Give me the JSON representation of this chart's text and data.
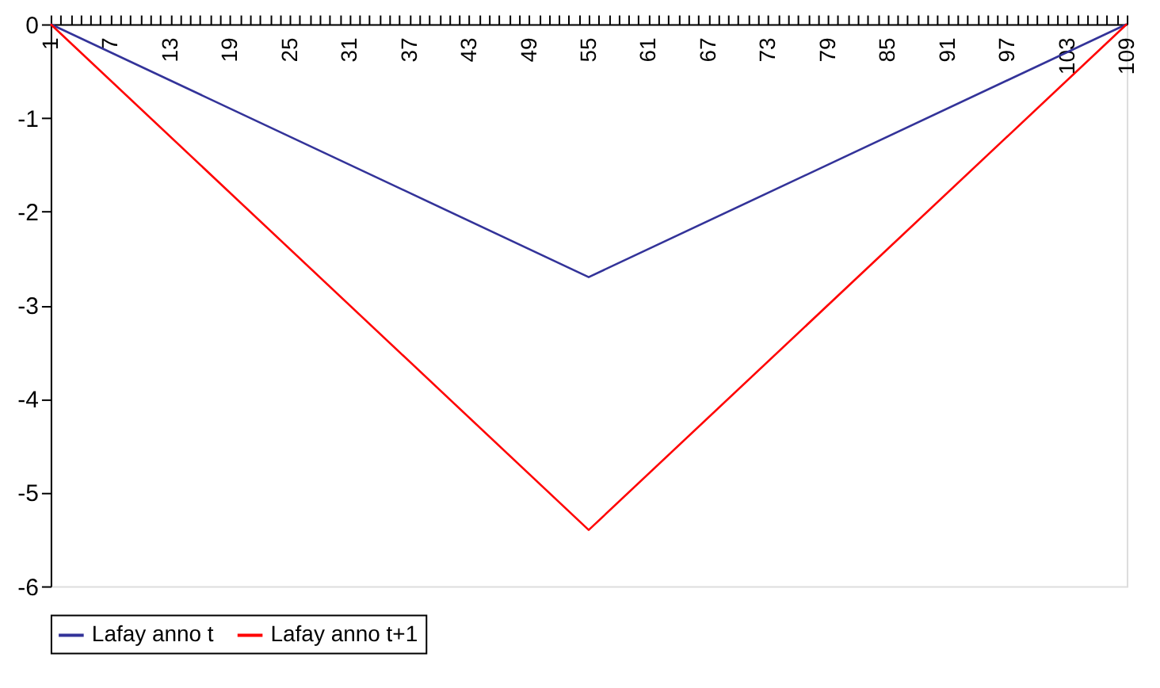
{
  "chart_data": {
    "type": "line",
    "x": [
      1,
      55,
      109
    ],
    "series": [
      {
        "name": "Lafay anno t",
        "color": "#333399",
        "values": [
          0,
          -2.7,
          0
        ]
      },
      {
        "name": "Lafay anno t+1",
        "color": "#ff0000",
        "values": [
          0,
          -5.4,
          0
        ]
      }
    ],
    "xlim": [
      1,
      109
    ],
    "xticks": [
      1,
      {
        "value": 2,
        "label": null
      },
      {
        "value": 3,
        "label": null
      },
      {
        "value": 4,
        "label": null
      },
      {
        "value": 5,
        "label": null
      },
      {
        "value": 6,
        "label": null
      },
      7,
      {
        "value": 8,
        "label": null
      },
      {
        "value": 9,
        "label": null
      },
      {
        "value": 10,
        "label": null
      },
      {
        "value": 11,
        "label": null
      },
      {
        "value": 12,
        "label": null
      },
      13,
      {
        "value": 14,
        "label": null
      },
      {
        "value": 15,
        "label": null
      },
      {
        "value": 16,
        "label": null
      },
      {
        "value": 17,
        "label": null
      },
      {
        "value": 18,
        "label": null
      },
      19,
      {
        "value": 20,
        "label": null
      },
      {
        "value": 21,
        "label": null
      },
      {
        "value": 22,
        "label": null
      },
      {
        "value": 23,
        "label": null
      },
      {
        "value": 24,
        "label": null
      },
      25,
      {
        "value": 26,
        "label": null
      },
      {
        "value": 27,
        "label": null
      },
      {
        "value": 28,
        "label": null
      },
      {
        "value": 29,
        "label": null
      },
      {
        "value": 30,
        "label": null
      },
      31,
      {
        "value": 32,
        "label": null
      },
      {
        "value": 33,
        "label": null
      },
      {
        "value": 34,
        "label": null
      },
      {
        "value": 35,
        "label": null
      },
      {
        "value": 36,
        "label": null
      },
      37,
      {
        "value": 38,
        "label": null
      },
      {
        "value": 39,
        "label": null
      },
      {
        "value": 40,
        "label": null
      },
      {
        "value": 41,
        "label": null
      },
      {
        "value": 42,
        "label": null
      },
      43,
      {
        "value": 44,
        "label": null
      },
      {
        "value": 45,
        "label": null
      },
      {
        "value": 46,
        "label": null
      },
      {
        "value": 47,
        "label": null
      },
      {
        "value": 48,
        "label": null
      },
      49,
      {
        "value": 50,
        "label": null
      },
      {
        "value": 51,
        "label": null
      },
      {
        "value": 52,
        "label": null
      },
      {
        "value": 53,
        "label": null
      },
      {
        "value": 54,
        "label": null
      },
      55,
      {
        "value": 56,
        "label": null
      },
      {
        "value": 57,
        "label": null
      },
      {
        "value": 58,
        "label": null
      },
      {
        "value": 59,
        "label": null
      },
      {
        "value": 60,
        "label": null
      },
      61,
      {
        "value": 62,
        "label": null
      },
      {
        "value": 63,
        "label": null
      },
      {
        "value": 64,
        "label": null
      },
      {
        "value": 65,
        "label": null
      },
      {
        "value": 66,
        "label": null
      },
      67,
      {
        "value": 68,
        "label": null
      },
      {
        "value": 69,
        "label": null
      },
      {
        "value": 70,
        "label": null
      },
      {
        "value": 71,
        "label": null
      },
      {
        "value": 72,
        "label": null
      },
      73,
      {
        "value": 74,
        "label": null
      },
      {
        "value": 75,
        "label": null
      },
      {
        "value": 76,
        "label": null
      },
      {
        "value": 77,
        "label": null
      },
      {
        "value": 78,
        "label": null
      },
      79,
      {
        "value": 80,
        "label": null
      },
      {
        "value": 81,
        "label": null
      },
      {
        "value": 82,
        "label": null
      },
      {
        "value": 83,
        "label": null
      },
      {
        "value": 84,
        "label": null
      },
      85,
      {
        "value": 86,
        "label": null
      },
      {
        "value": 87,
        "label": null
      },
      {
        "value": 88,
        "label": null
      },
      {
        "value": 89,
        "label": null
      },
      {
        "value": 90,
        "label": null
      },
      91,
      {
        "value": 92,
        "label": null
      },
      {
        "value": 93,
        "label": null
      },
      {
        "value": 94,
        "label": null
      },
      {
        "value": 95,
        "label": null
      },
      {
        "value": 96,
        "label": null
      },
      97,
      {
        "value": 98,
        "label": null
      },
      {
        "value": 99,
        "label": null
      },
      {
        "value": 100,
        "label": null
      },
      {
        "value": 101,
        "label": null
      },
      {
        "value": 102,
        "label": null
      },
      103,
      {
        "value": 104,
        "label": null
      },
      {
        "value": 105,
        "label": null
      },
      {
        "value": 106,
        "label": null
      },
      {
        "value": 107,
        "label": null
      },
      {
        "value": 108,
        "label": null
      },
      109
    ],
    "ylim": [
      -6,
      0
    ],
    "yticks": [
      0,
      -1,
      -2,
      -3,
      -4,
      -5,
      -6
    ],
    "grid": false,
    "legend": "bottom",
    "marker": "none",
    "line_style": "solid"
  }
}
